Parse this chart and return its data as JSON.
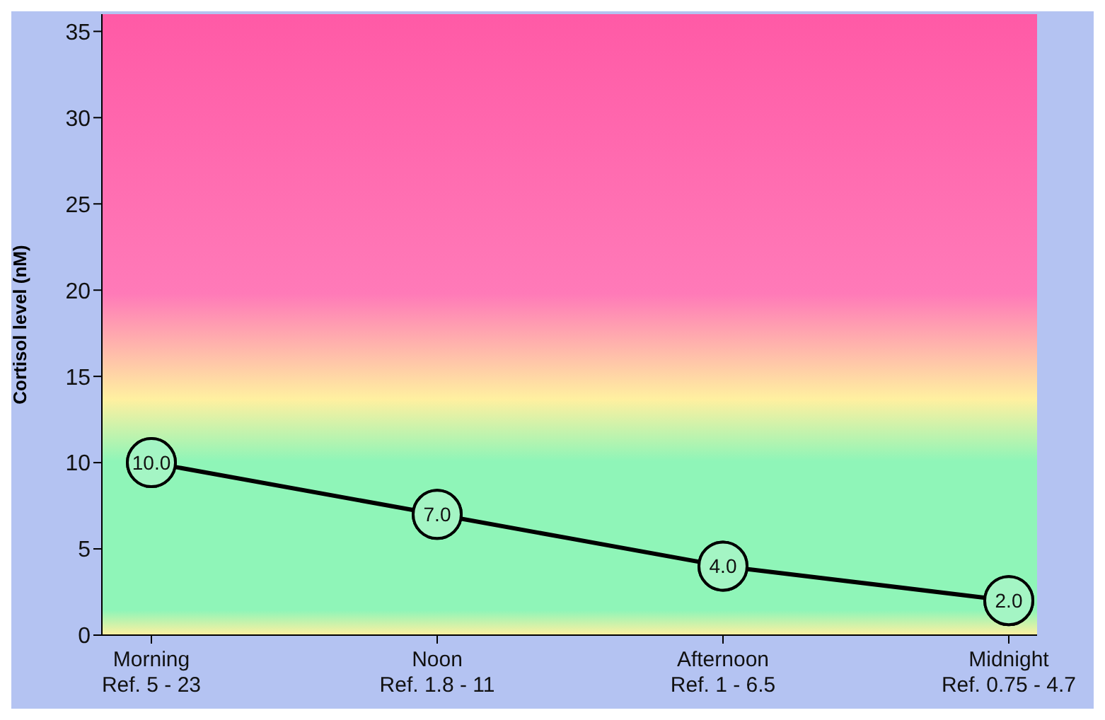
{
  "chart_data": {
    "type": "line",
    "ylabel": "Cortisol level (nM)",
    "categories": [
      "Morning\nRef. 5 - 23",
      "Noon\nRef. 1.8 - 11",
      "Afternoon\nRef. 1 - 6.5",
      "Midnight\nRef. 0.75 - 4.7"
    ],
    "series": [
      {
        "color": "#000000",
        "values": [
          10.0,
          7.0,
          4.0,
          2.0
        ],
        "value_labels": [
          "10.0",
          "7.0",
          "4.0",
          "2.0"
        ]
      }
    ],
    "ylim": [
      0,
      36
    ],
    "yticks": [
      0,
      5,
      10,
      15,
      20,
      25,
      30,
      35
    ],
    "marker": "circle"
  }
}
